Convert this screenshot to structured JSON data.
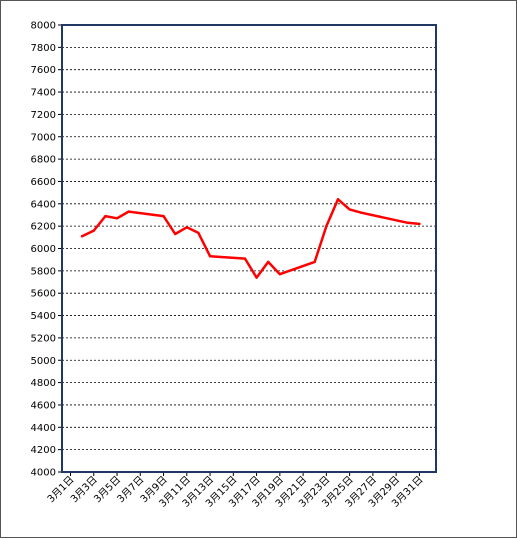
{
  "chart_data": {
    "type": "line",
    "title": "",
    "xlabel": "",
    "ylabel": "",
    "ylim": [
      4000,
      8000
    ],
    "ytick_step": 200,
    "grid": "horizontal dashed",
    "legend": "none",
    "colors": {
      "line": "#ff0000",
      "plot_border": "#1f3864",
      "grid": "#000000"
    },
    "x_tick_labels": [
      "3月1日",
      "3月3日",
      "3月5日",
      "3月7日",
      "3月9日",
      "3月11日",
      "3月13日",
      "3月15日",
      "3月17日",
      "3月19日",
      "3月21日",
      "3月23日",
      "3月25日",
      "3月27日",
      "3月29日",
      "3月31日"
    ],
    "series": [
      {
        "x": [
          "3月2日",
          "3月3日",
          "3月4日",
          "3月5日",
          "3月6日",
          "3月9日",
          "3月10日",
          "3月11日",
          "3月12日",
          "3月13日",
          "3月16日",
          "3月17日",
          "3月18日",
          "3月19日",
          "3月22日",
          "3月23日",
          "3月24日",
          "3月25日",
          "3月26日",
          "3月30日",
          "3月31日"
        ],
        "values": [
          6110,
          6160,
          6290,
          6270,
          6330,
          6290,
          6130,
          6190,
          6140,
          5930,
          5910,
          5740,
          5880,
          5770,
          5880,
          6200,
          6440,
          6350,
          6320,
          6230,
          6220
        ]
      }
    ]
  }
}
